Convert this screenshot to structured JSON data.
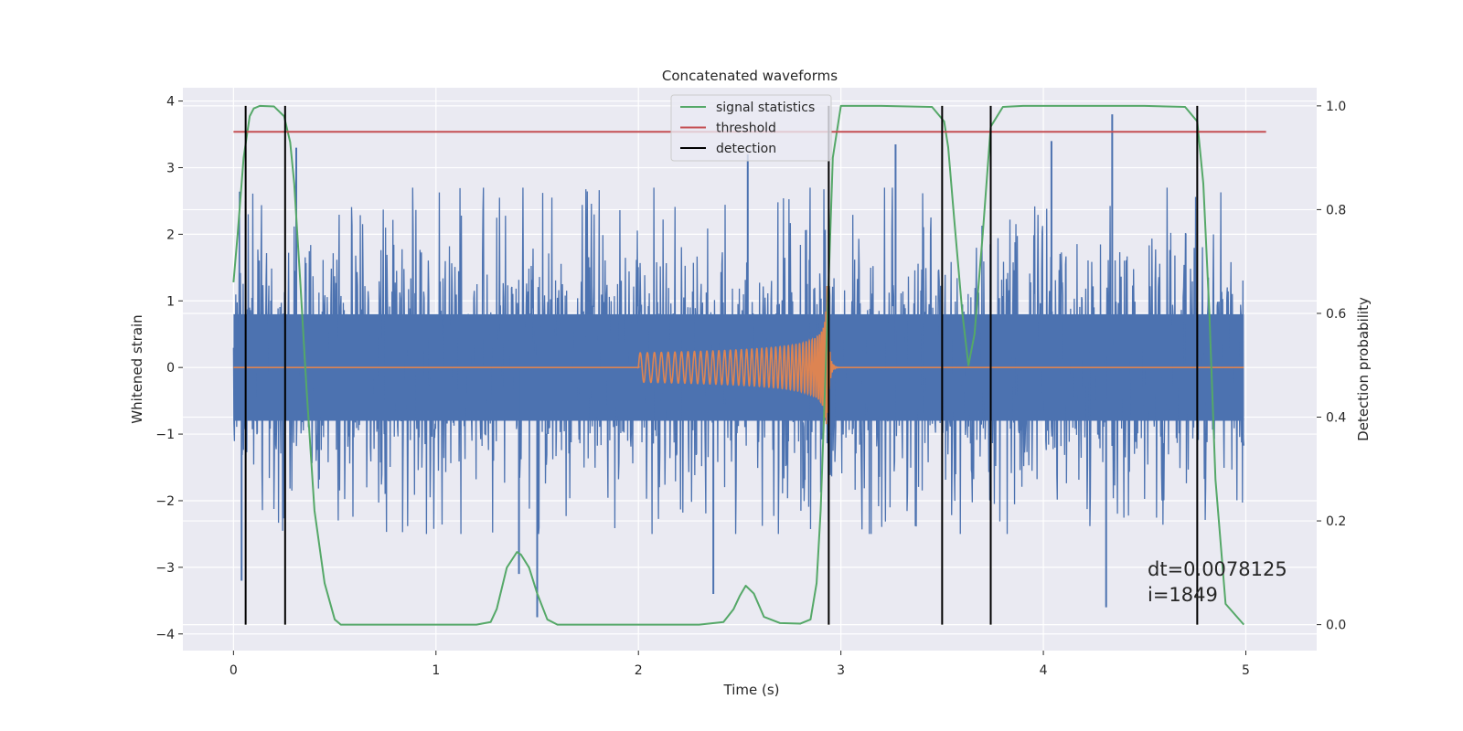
{
  "chart_data": {
    "type": "line",
    "title": "Concatenated waveforms",
    "xlabel": "Time (s)",
    "ylabel": "Whitened strain",
    "ylabel_right": "Detection probability",
    "xlim": [
      -0.25,
      5.35
    ],
    "ylim": [
      -4.25,
      4.2
    ],
    "ylim_right": [
      -0.05,
      1.035
    ],
    "x_ticks": [
      0,
      1,
      2,
      3,
      4,
      5
    ],
    "y_ticks": [
      -4,
      -3,
      -2,
      -1,
      0,
      1,
      2,
      3,
      4
    ],
    "y_ticks_right": [
      0.0,
      0.2,
      0.4,
      0.6,
      0.8,
      1.0
    ],
    "x_tick_labels": [
      "0",
      "1",
      "2",
      "3",
      "4",
      "5"
    ],
    "y_tick_labels": [
      "−4",
      "−3",
      "−2",
      "−1",
      "0",
      "1",
      "2",
      "3",
      "4"
    ],
    "y_tick_labels_right": [
      "0.0",
      "0.2",
      "0.4",
      "0.6",
      "0.8",
      "1.0"
    ],
    "grid": true,
    "legend_position": "top-center",
    "legend": [
      {
        "label": "signal statistics",
        "color": "#55a868"
      },
      {
        "label": "threshold",
        "color": "#c44e52"
      },
      {
        "label": "detection",
        "color": "#000000"
      }
    ],
    "annotation": "dt=0.0078125\n i=1849",
    "series": [
      {
        "name": "",
        "axis": "left",
        "color": "#4c72b0",
        "kind": "noise",
        "x_range": [
          0,
          4.99
        ],
        "core_amplitude": 0.8,
        "typical_peak_range": [
          -2.5,
          2.7
        ],
        "extreme_values": [
          {
            "x": 0.04,
            "y": -3.2
          },
          {
            "x": 0.31,
            "y": 3.3
          },
          {
            "x": 1.41,
            "y": -3.1
          },
          {
            "x": 1.5,
            "y": -3.75
          },
          {
            "x": 2.54,
            "y": 3.2
          },
          {
            "x": 2.37,
            "y": -3.4
          },
          {
            "x": 3.27,
            "y": 3.35
          },
          {
            "x": 4.04,
            "y": 3.4
          },
          {
            "x": 4.34,
            "y": 3.8
          },
          {
            "x": 4.31,
            "y": -3.6
          }
        ]
      },
      {
        "name": "",
        "axis": "left",
        "color": "#dd8452",
        "kind": "chirp",
        "baseline": 0,
        "x_range": [
          0,
          4.99
        ],
        "chirp_start": 2.0,
        "chirp_merger": 2.93,
        "start_amplitude": 0.22,
        "peak_amplitude": 1.5,
        "start_frequency_hz": 28
      },
      {
        "name": "signal statistics",
        "axis": "right",
        "color": "#55a868",
        "x": [
          0.0,
          0.02,
          0.05,
          0.08,
          0.1,
          0.13,
          0.2,
          0.25,
          0.28,
          0.3,
          0.33,
          0.36,
          0.4,
          0.45,
          0.5,
          0.53,
          0.6,
          0.8,
          1.0,
          1.2,
          1.27,
          1.3,
          1.35,
          1.4,
          1.42,
          1.46,
          1.5,
          1.55,
          1.6,
          1.7,
          2.0,
          2.3,
          2.42,
          2.47,
          2.5,
          2.53,
          2.57,
          2.62,
          2.7,
          2.8,
          2.85,
          2.88,
          2.9,
          2.93,
          2.96,
          3.0,
          3.2,
          3.45,
          3.51,
          3.53,
          3.56,
          3.6,
          3.63,
          3.66,
          3.7,
          3.74,
          3.8,
          3.9,
          4.2,
          4.5,
          4.7,
          4.76,
          4.79,
          4.82,
          4.85,
          4.9,
          4.99
        ],
        "y": [
          0.66,
          0.75,
          0.9,
          0.98,
          0.995,
          1.0,
          0.999,
          0.98,
          0.93,
          0.85,
          0.66,
          0.46,
          0.22,
          0.08,
          0.01,
          0.0,
          0.0,
          0.0,
          0.0,
          0.0,
          0.005,
          0.03,
          0.11,
          0.14,
          0.135,
          0.11,
          0.06,
          0.01,
          0.0,
          0.0,
          0.0,
          0.0,
          0.005,
          0.03,
          0.055,
          0.075,
          0.06,
          0.015,
          0.003,
          0.002,
          0.01,
          0.08,
          0.22,
          0.55,
          0.9,
          1.0,
          1.0,
          0.998,
          0.97,
          0.92,
          0.78,
          0.6,
          0.5,
          0.56,
          0.75,
          0.96,
          0.998,
          1.0,
          1.0,
          1.0,
          0.998,
          0.97,
          0.85,
          0.6,
          0.28,
          0.04,
          0.0
        ]
      },
      {
        "name": "threshold",
        "axis": "right",
        "color": "#c44e52",
        "x": [
          0.0,
          5.1
        ],
        "y": [
          0.95,
          0.95
        ]
      }
    ],
    "detections": {
      "color": "#000000",
      "x": [
        0.06,
        0.255,
        2.94,
        3.5,
        3.74,
        4.76
      ],
      "y_range": [
        0.0,
        1.0
      ]
    }
  }
}
